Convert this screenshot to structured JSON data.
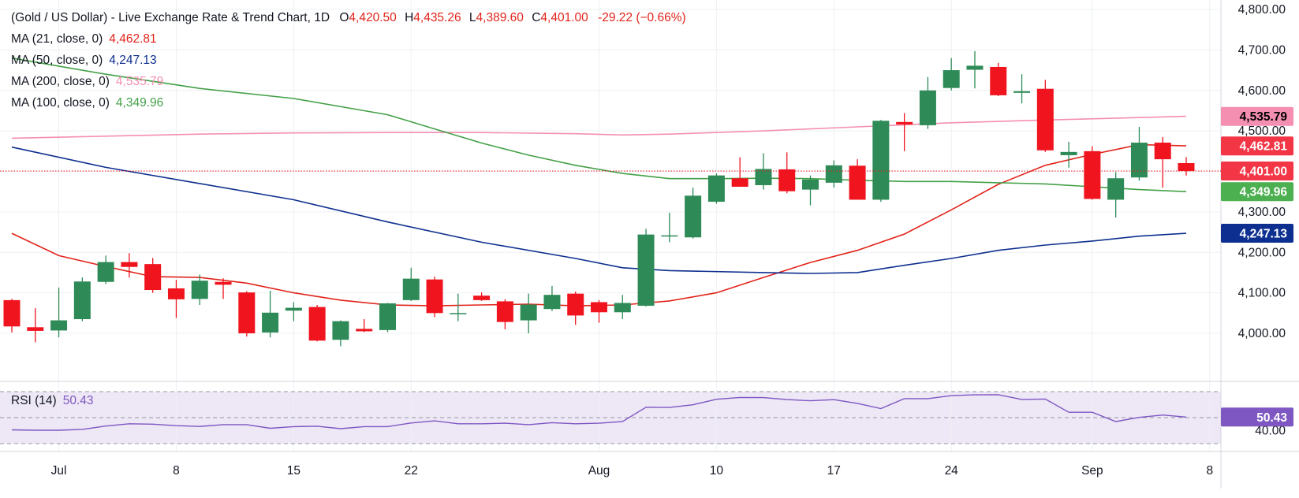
{
  "header": {
    "title": "(Gold / US Dollar) - Live Exchange Rate & Trend Chart, 1D",
    "ohlc": [
      {
        "label": "O",
        "value": "4,420.50"
      },
      {
        "label": "H",
        "value": "4,435.26"
      },
      {
        "label": "L",
        "value": "4,389.60"
      },
      {
        "label": "C",
        "value": "4,401.00"
      }
    ],
    "change": "-29.22 (−0.66%)"
  },
  "indicators": [
    {
      "id": "ma21",
      "label": "MA (21, close, 0)",
      "value": "4,462.81",
      "color": "#e2231a"
    },
    {
      "id": "ma50",
      "label": "MA (50, close, 0)",
      "value": "4,247.13",
      "color": "#0d2f8f"
    },
    {
      "id": "ma200",
      "label": "MA (200, close, 0)",
      "value": "4,535.79",
      "color": "#f48fb1"
    },
    {
      "id": "ma100",
      "label": "MA (100, close, 0)",
      "value": "4,349.96",
      "color": "#43a047"
    }
  ],
  "rsi": {
    "label": "RSI (14)",
    "value": "50.43",
    "color": "#7e57c2",
    "axis_label": "40.00"
  },
  "price_tags": [
    {
      "text": "4,535.79",
      "value": 4535.79,
      "bg": "#f48fb1",
      "fg": "#000000"
    },
    {
      "text": "4,462.81",
      "value": 4462.81,
      "bg": "#f23645",
      "fg": "#ffffff"
    },
    {
      "text": "4,401.00",
      "value": 4401.0,
      "bg": "#f23645",
      "fg": "#ffffff"
    },
    {
      "text": "4,349.96",
      "value": 4349.96,
      "bg": "#4caf50",
      "fg": "#ffffff"
    },
    {
      "text": "4,247.13",
      "value": 4247.13,
      "bg": "#0d2f8f",
      "fg": "#ffffff"
    }
  ],
  "colors": {
    "up": "#2e8b57",
    "down": "#f0141e",
    "grid": "#eef0f3",
    "text": "#131722",
    "rsi_band": "#ede7f6"
  },
  "chart_data": {
    "type": "candlestick",
    "y_ticks": [
      4000,
      4100,
      4200,
      4300,
      4400,
      4500,
      4600,
      4700,
      4800
    ],
    "y_tick_labels": [
      "4,000.00",
      "4,100.00",
      "4,200.00",
      "4,300.00",
      "4,400.00",
      "4,500.00",
      "4,600.00",
      "4,700.00",
      "4,800.00"
    ],
    "ylim": [
      3940,
      4810
    ],
    "x_tick_labels": [
      {
        "label": "Jul",
        "index": 2
      },
      {
        "label": "8",
        "index": 7
      },
      {
        "label": "15",
        "index": 12
      },
      {
        "label": "22",
        "index": 17
      },
      {
        "label": "Aug",
        "index": 25
      },
      {
        "label": "10",
        "index": 30
      },
      {
        "label": "17",
        "index": 35
      },
      {
        "label": "24",
        "index": 40
      },
      {
        "label": "Sep",
        "index": 46
      },
      {
        "label": "8",
        "index": 51
      }
    ],
    "candles": [
      {
        "o": 4082,
        "h": 4085,
        "l": 4002,
        "c": 4017
      },
      {
        "o": 4015,
        "h": 4062,
        "l": 3978,
        "c": 4006
      },
      {
        "o": 4007,
        "h": 4113,
        "l": 3990,
        "c": 4032
      },
      {
        "o": 4035,
        "h": 4138,
        "l": 4030,
        "c": 4128
      },
      {
        "o": 4127,
        "h": 4192,
        "l": 4122,
        "c": 4176
      },
      {
        "o": 4176,
        "h": 4198,
        "l": 4138,
        "c": 4164
      },
      {
        "o": 4171,
        "h": 4186,
        "l": 4100,
        "c": 4107
      },
      {
        "o": 4111,
        "h": 4132,
        "l": 4038,
        "c": 4084
      },
      {
        "o": 4085,
        "h": 4145,
        "l": 4070,
        "c": 4130
      },
      {
        "o": 4127,
        "h": 4136,
        "l": 4085,
        "c": 4120
      },
      {
        "o": 4101,
        "h": 4104,
        "l": 3992,
        "c": 4000
      },
      {
        "o": 4002,
        "h": 4105,
        "l": 3990,
        "c": 4051
      },
      {
        "o": 4056,
        "h": 4077,
        "l": 4030,
        "c": 4063
      },
      {
        "o": 4065,
        "h": 4070,
        "l": 3980,
        "c": 3982
      },
      {
        "o": 3984,
        "h": 4032,
        "l": 3968,
        "c": 4030
      },
      {
        "o": 4011,
        "h": 4035,
        "l": 4003,
        "c": 4005
      },
      {
        "o": 4008,
        "h": 4075,
        "l": 4003,
        "c": 4074
      },
      {
        "o": 4082,
        "h": 4162,
        "l": 4080,
        "c": 4135
      },
      {
        "o": 4133,
        "h": 4140,
        "l": 4040,
        "c": 4050
      },
      {
        "o": 4050,
        "h": 4098,
        "l": 4030,
        "c": 4050
      },
      {
        "o": 4093,
        "h": 4101,
        "l": 4080,
        "c": 4082
      },
      {
        "o": 4079,
        "h": 4084,
        "l": 4010,
        "c": 4028
      },
      {
        "o": 4032,
        "h": 4098,
        "l": 4000,
        "c": 4071
      },
      {
        "o": 4060,
        "h": 4117,
        "l": 4055,
        "c": 4095
      },
      {
        "o": 4098,
        "h": 4103,
        "l": 4021,
        "c": 4044
      },
      {
        "o": 4077,
        "h": 4082,
        "l": 4026,
        "c": 4052
      },
      {
        "o": 4052,
        "h": 4095,
        "l": 4035,
        "c": 4075
      },
      {
        "o": 4068,
        "h": 4258,
        "l": 4066,
        "c": 4244
      },
      {
        "o": 4240,
        "h": 4298,
        "l": 4225,
        "c": 4242
      },
      {
        "o": 4237,
        "h": 4360,
        "l": 4234,
        "c": 4340
      },
      {
        "o": 4325,
        "h": 4395,
        "l": 4320,
        "c": 4390
      },
      {
        "o": 4383,
        "h": 4435,
        "l": 4365,
        "c": 4362
      },
      {
        "o": 4366,
        "h": 4445,
        "l": 4355,
        "c": 4406
      },
      {
        "o": 4405,
        "h": 4447,
        "l": 4346,
        "c": 4351
      },
      {
        "o": 4355,
        "h": 4390,
        "l": 4316,
        "c": 4380
      },
      {
        "o": 4372,
        "h": 4427,
        "l": 4360,
        "c": 4415
      },
      {
        "o": 4414,
        "h": 4430,
        "l": 4330,
        "c": 4330
      },
      {
        "o": 4330,
        "h": 4527,
        "l": 4325,
        "c": 4525
      },
      {
        "o": 4522,
        "h": 4544,
        "l": 4450,
        "c": 4516
      },
      {
        "o": 4514,
        "h": 4633,
        "l": 4505,
        "c": 4600
      },
      {
        "o": 4606,
        "h": 4680,
        "l": 4600,
        "c": 4650
      },
      {
        "o": 4651,
        "h": 4697,
        "l": 4605,
        "c": 4661
      },
      {
        "o": 4658,
        "h": 4668,
        "l": 4586,
        "c": 4588
      },
      {
        "o": 4594,
        "h": 4640,
        "l": 4568,
        "c": 4598
      },
      {
        "o": 4604,
        "h": 4626,
        "l": 4448,
        "c": 4452
      },
      {
        "o": 4440,
        "h": 4473,
        "l": 4409,
        "c": 4448
      },
      {
        "o": 4450,
        "h": 4462,
        "l": 4330,
        "c": 4332
      },
      {
        "o": 4330,
        "h": 4398,
        "l": 4286,
        "c": 4383
      },
      {
        "o": 4385,
        "h": 4510,
        "l": 4377,
        "c": 4471
      },
      {
        "o": 4471,
        "h": 4485,
        "l": 4360,
        "c": 4430
      },
      {
        "o": 4420.5,
        "h": 4435.26,
        "l": 4389.6,
        "c": 4401.0
      }
    ],
    "series": [
      {
        "name": "MA (21, close, 0)",
        "color": "#e2231a",
        "points": [
          [
            0,
            4247
          ],
          [
            2,
            4192
          ],
          [
            4,
            4165
          ],
          [
            6,
            4140
          ],
          [
            8,
            4138
          ],
          [
            10,
            4124
          ],
          [
            12,
            4100
          ],
          [
            14,
            4082
          ],
          [
            16,
            4070
          ],
          [
            18,
            4068
          ],
          [
            20,
            4070
          ],
          [
            22,
            4072
          ],
          [
            24,
            4068
          ],
          [
            26,
            4070
          ],
          [
            28,
            4080
          ],
          [
            30,
            4100
          ],
          [
            32,
            4138
          ],
          [
            34,
            4175
          ],
          [
            36,
            4205
          ],
          [
            38,
            4245
          ],
          [
            40,
            4305
          ],
          [
            42,
            4368
          ],
          [
            44,
            4415
          ],
          [
            46,
            4442
          ],
          [
            48,
            4466
          ],
          [
            50,
            4463
          ]
        ]
      },
      {
        "name": "MA (50, close, 0)",
        "color": "#0d2f8f",
        "points": [
          [
            0,
            4460
          ],
          [
            4,
            4410
          ],
          [
            8,
            4370
          ],
          [
            12,
            4330
          ],
          [
            16,
            4275
          ],
          [
            20,
            4225
          ],
          [
            24,
            4185
          ],
          [
            26,
            4162
          ],
          [
            28,
            4155
          ],
          [
            32,
            4150
          ],
          [
            34,
            4148
          ],
          [
            36,
            4150
          ],
          [
            38,
            4168
          ],
          [
            40,
            4185
          ],
          [
            42,
            4205
          ],
          [
            44,
            4218
          ],
          [
            46,
            4228
          ],
          [
            48,
            4240
          ],
          [
            50,
            4247
          ]
        ]
      },
      {
        "name": "MA (200, close, 0)",
        "color": "#f48fb1",
        "points": [
          [
            0,
            4482
          ],
          [
            4,
            4487
          ],
          [
            8,
            4492
          ],
          [
            12,
            4495
          ],
          [
            16,
            4496
          ],
          [
            20,
            4496
          ],
          [
            24,
            4493
          ],
          [
            26,
            4490
          ],
          [
            28,
            4492
          ],
          [
            32,
            4500
          ],
          [
            36,
            4510
          ],
          [
            40,
            4520
          ],
          [
            44,
            4527
          ],
          [
            48,
            4533
          ],
          [
            50,
            4536
          ]
        ]
      },
      {
        "name": "MA (100, close, 0)",
        "color": "#43a047",
        "points": [
          [
            0,
            4680
          ],
          [
            4,
            4640
          ],
          [
            8,
            4605
          ],
          [
            12,
            4580
          ],
          [
            16,
            4540
          ],
          [
            18,
            4505
          ],
          [
            20,
            4470
          ],
          [
            22,
            4440
          ],
          [
            24,
            4415
          ],
          [
            26,
            4395
          ],
          [
            28,
            4382
          ],
          [
            30,
            4382
          ],
          [
            32,
            4383
          ],
          [
            34,
            4382
          ],
          [
            36,
            4378
          ],
          [
            38,
            4375
          ],
          [
            40,
            4375
          ],
          [
            42,
            4372
          ],
          [
            44,
            4369
          ],
          [
            46,
            4362
          ],
          [
            48,
            4355
          ],
          [
            50,
            4350
          ]
        ]
      }
    ],
    "rsi": {
      "ylim": [
        30,
        80
      ],
      "levels": [
        70,
        50,
        30
      ],
      "values": [
        40.6,
        40.3,
        40.3,
        41.0,
        43.5,
        45.3,
        45.0,
        43.8,
        43.2,
        44.6,
        44.6,
        41.8,
        43.1,
        43.4,
        41.5,
        43.1,
        43.1,
        45.9,
        47.5,
        45.3,
        45.3,
        45.7,
        44.6,
        46.1,
        45.3,
        45.7,
        47.0,
        58.0,
        57.8,
        59.9,
        64.1,
        65.5,
        65.4,
        63.9,
        63.0,
        63.8,
        61.0,
        57.0,
        64.6,
        64.6,
        66.9,
        67.5,
        67.6,
        64.0,
        64.3,
        54.1,
        54.1,
        47.0,
        50.2,
        52.0,
        50.43
      ]
    }
  }
}
